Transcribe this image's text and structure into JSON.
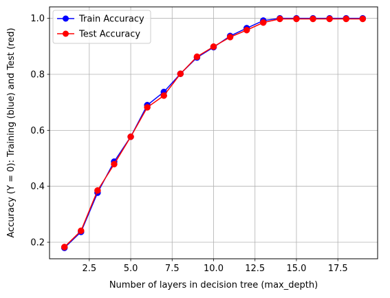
{
  "chart_data": {
    "type": "line",
    "title": "",
    "xlabel": "Number of layers in decision tree (max_depth)",
    "ylabel": "Accuracy (Y = 0): Training (blue) and Test (red)",
    "xlim": [
      0.1,
      19.9
    ],
    "ylim": [
      0.141,
      1.041
    ],
    "xticks": [
      2.5,
      5.0,
      7.5,
      10.0,
      12.5,
      15.0,
      17.5
    ],
    "xtick_labels": [
      "2.5",
      "5.0",
      "7.5",
      "10.0",
      "12.5",
      "15.0",
      "17.5"
    ],
    "yticks": [
      0.2,
      0.4,
      0.6,
      0.8,
      1.0
    ],
    "ytick_labels": [
      "0.2",
      "0.4",
      "0.6",
      "0.8",
      "1.0"
    ],
    "grid": true,
    "legend_position": "top-left",
    "x": [
      1,
      2,
      3,
      4,
      5,
      6,
      7,
      8,
      9,
      10,
      11,
      12,
      13,
      14,
      15,
      16,
      17,
      18,
      19
    ],
    "series": [
      {
        "name": "Train Accuracy",
        "color": "#0000ff",
        "values": [
          0.18,
          0.237,
          0.377,
          0.488,
          0.577,
          0.69,
          0.737,
          0.802,
          0.86,
          0.897,
          0.937,
          0.965,
          0.992,
          1.0,
          1.0,
          1.0,
          1.0,
          1.0,
          1.0
        ]
      },
      {
        "name": "Test Accuracy",
        "color": "#ff0000",
        "values": [
          0.183,
          0.241,
          0.385,
          0.479,
          0.577,
          0.682,
          0.724,
          0.802,
          0.863,
          0.899,
          0.933,
          0.958,
          0.985,
          0.998,
          0.998,
          0.998,
          0.998,
          0.998,
          0.998
        ]
      }
    ]
  }
}
